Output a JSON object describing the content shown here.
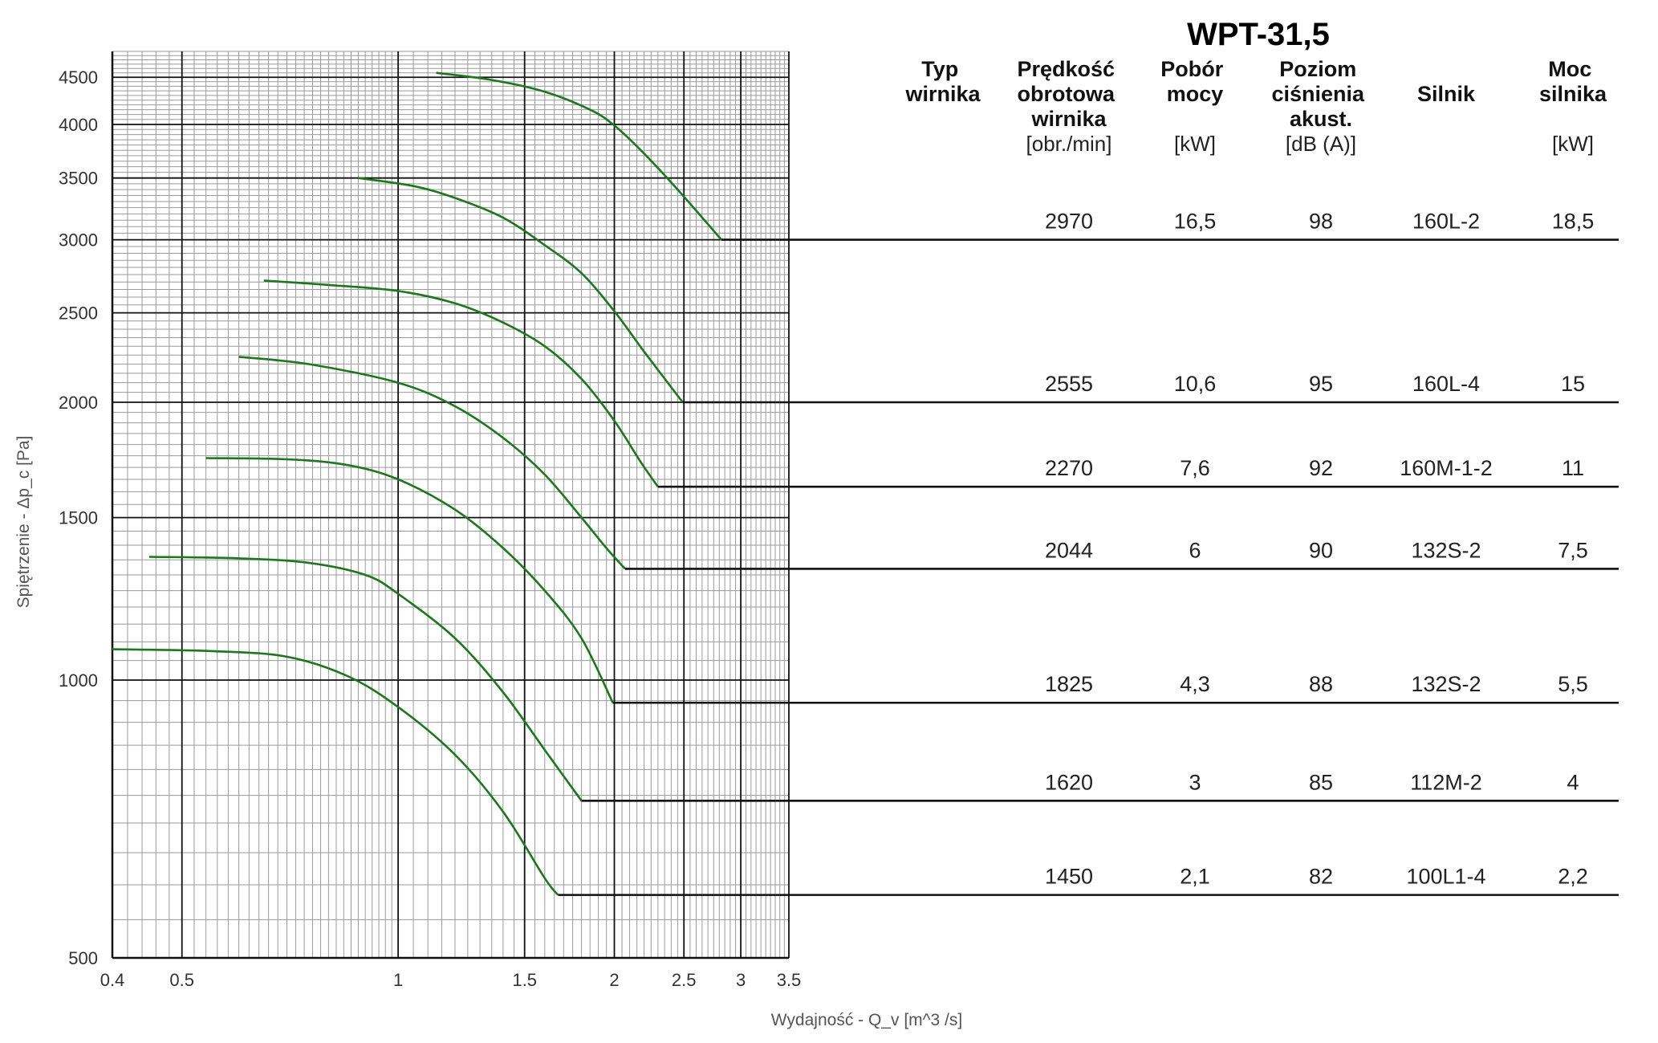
{
  "title": "WPT-31,5",
  "headers": {
    "typ": [
      "Typ",
      "wirnika"
    ],
    "predkosc": [
      "Prędkość",
      "obrotowa",
      "wirnika"
    ],
    "predkosc_unit": "[obr./min]",
    "pobor": [
      "Pobór",
      "mocy"
    ],
    "pobor_unit": "[kW]",
    "poziom": [
      "Poziom",
      "ciśnienia",
      "akust."
    ],
    "poziom_unit": "[dB (A)]",
    "silnik": [
      "Silnik"
    ],
    "moc": [
      "Moc",
      "silnika"
    ],
    "moc_unit": "[kW]"
  },
  "rows": [
    {
      "speed": "2970",
      "power": "16,5",
      "noise": "98",
      "motor": "160L-2",
      "motor_power": "18,5"
    },
    {
      "speed": "2555",
      "power": "10,6",
      "noise": "95",
      "motor": "160L-4",
      "motor_power": "15"
    },
    {
      "speed": "2270",
      "power": "7,6",
      "noise": "92",
      "motor": "160M-1-2",
      "motor_power": "11"
    },
    {
      "speed": "2044",
      "power": "6",
      "noise": "90",
      "motor": "132S-2",
      "motor_power": "7,5"
    },
    {
      "speed": "1825",
      "power": "4,3",
      "noise": "88",
      "motor": "132S-2",
      "motor_power": "5,5"
    },
    {
      "speed": "1620",
      "power": "3",
      "noise": "85",
      "motor": "112M-2",
      "motor_power": "4"
    },
    {
      "speed": "1450",
      "power": "2,1",
      "noise": "82",
      "motor": "100L1-4",
      "motor_power": "2,2"
    }
  ],
  "colors": {
    "curve": "#1a7a1a",
    "grid_major": "#111111",
    "grid_minor": "#9a9a9a"
  },
  "chart_data": {
    "type": "line",
    "xscale": "log",
    "yscale": "log",
    "xlim": [
      0.4,
      3.5
    ],
    "ylim": [
      500,
      4800
    ],
    "xlabel": "Wydajność - Q_v [m^3 /s]",
    "ylabel": "Spiętrzenie - Δp_c [Pa]",
    "x_ticks": [
      "0.4",
      "0.5",
      "1",
      "1.5",
      "2",
      "2.5",
      "3",
      "3.5"
    ],
    "y_ticks": [
      "500",
      "1000",
      "1500",
      "2000",
      "2500",
      "3000",
      "3500",
      "4000",
      "4500"
    ],
    "grid": true,
    "series": [
      {
        "name": "2970",
        "x": [
          1.13,
          1.35,
          1.6,
          1.85,
          2.0,
          2.2,
          2.45,
          2.82
        ],
        "y": [
          4550,
          4470,
          4340,
          4150,
          3990,
          3720,
          3400,
          3000
        ],
        "limit": 3000
      },
      {
        "name": "2555",
        "x": [
          0.88,
          1.05,
          1.2,
          1.4,
          1.6,
          1.8,
          2.0,
          2.2,
          2.49
        ],
        "y": [
          3500,
          3430,
          3330,
          3170,
          2960,
          2760,
          2510,
          2270,
          2000
        ],
        "limit": 2000
      },
      {
        "name": "2270",
        "x": [
          0.65,
          0.8,
          1.0,
          1.2,
          1.4,
          1.6,
          1.8,
          2.0,
          2.18,
          2.3
        ],
        "y": [
          2710,
          2680,
          2640,
          2560,
          2440,
          2300,
          2120,
          1910,
          1720,
          1620
        ],
        "limit": 1620
      },
      {
        "name": "2044",
        "x": [
          0.6,
          0.75,
          1.0,
          1.2,
          1.4,
          1.6,
          1.8,
          1.95,
          2.07
        ],
        "y": [
          2240,
          2200,
          2100,
          1980,
          1830,
          1670,
          1500,
          1390,
          1320
        ],
        "limit": 1320
      },
      {
        "name": "1825",
        "x": [
          0.54,
          0.7,
          0.85,
          1.0,
          1.2,
          1.4,
          1.6,
          1.8,
          1.99
        ],
        "y": [
          1740,
          1735,
          1710,
          1650,
          1530,
          1390,
          1250,
          1110,
          945
        ],
        "limit": 945
      },
      {
        "name": "1620",
        "x": [
          0.45,
          0.6,
          0.75,
          0.9,
          1.0,
          1.2,
          1.4,
          1.6,
          1.8
        ],
        "y": [
          1360,
          1355,
          1340,
          1300,
          1240,
          1110,
          970,
          840,
          740
        ],
        "limit": 740
      },
      {
        "name": "1450",
        "x": [
          0.4,
          0.55,
          0.7,
          0.85,
          1.0,
          1.2,
          1.4,
          1.6,
          1.67
        ],
        "y": [
          1080,
          1075,
          1060,
          1010,
          935,
          830,
          720,
          610,
          585
        ],
        "limit": 585
      }
    ]
  }
}
